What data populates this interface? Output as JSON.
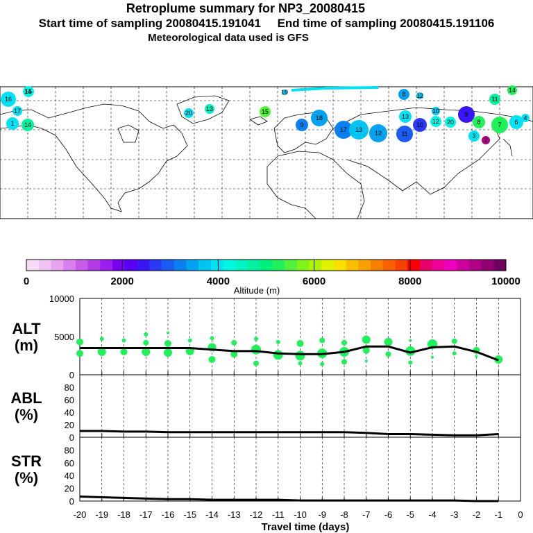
{
  "header": {
    "title": "Retroplume summary for NP3_20080415",
    "sampling": "Start time of sampling 20080415.191041     End time of sampling 20080415.191106",
    "met": "Meteorological data used is GFS"
  },
  "colorbar": {
    "colors": [
      "#f6dcf6",
      "#f0c4f2",
      "#e6a4f0",
      "#d880ee",
      "#c85ae8",
      "#b43ae6",
      "#9a1ef0",
      "#7a00f4",
      "#5a00f6",
      "#3a16f6",
      "#2a3af4",
      "#1a5cf2",
      "#0a80f0",
      "#00a2f0",
      "#00c4f2",
      "#00e2f4",
      "#00f6e2",
      "#00f4c0",
      "#00f29e",
      "#00f07c",
      "#20f05a",
      "#50f23a",
      "#80f41a",
      "#b0f400",
      "#e0f200",
      "#f8e000",
      "#f8c000",
      "#f8a000",
      "#f88000",
      "#f86000",
      "#f84000",
      "#f80000",
      "#e8006a",
      "#f00096",
      "#f000be",
      "#d0009c",
      "#b00088",
      "#900070",
      "#700060"
    ],
    "tick_labels": [
      "0",
      "2000",
      "4000",
      "6000",
      "8000",
      "10000"
    ],
    "label": "Altitude (m)"
  },
  "map_labels": [
    {
      "t": "16",
      "c": "#00e2f4"
    },
    {
      "t": "15",
      "c": "#00f6e2"
    },
    {
      "t": "17",
      "c": "#00e2f4"
    },
    {
      "t": "14",
      "c": "#00f29e"
    },
    {
      "t": "14",
      "c": "#00f29e"
    },
    {
      "t": "13",
      "c": "#00f0c0"
    },
    {
      "t": "15",
      "c": "#50f23a"
    },
    {
      "t": "20",
      "c": "#00e2f4"
    },
    {
      "t": "19",
      "c": "#00c4f2"
    },
    {
      "t": "18",
      "c": "#00a2f0"
    },
    {
      "t": "17",
      "c": "#0a80f0"
    },
    {
      "t": "13",
      "c": "#00c4f2"
    },
    {
      "t": "12",
      "c": "#00a2f0"
    },
    {
      "t": "11",
      "c": "#1a5cf2"
    },
    {
      "t": "10",
      "c": "#2a3af4"
    },
    {
      "t": "9",
      "c": "#3a16f6"
    },
    {
      "t": "8",
      "c": "#00a2f0"
    },
    {
      "t": "12",
      "c": "#00c4f2"
    },
    {
      "t": "10",
      "c": "#00c4f2"
    },
    {
      "t": "14",
      "c": "#20f05a"
    },
    {
      "t": "11",
      "c": "#00f29e"
    },
    {
      "t": "13",
      "c": "#00e2f4"
    },
    {
      "t": "12",
      "c": "#00f6e2"
    },
    {
      "t": "20",
      "c": "#00f6e2"
    },
    {
      "t": "8",
      "c": "#20f05a"
    },
    {
      "t": "7",
      "c": "#20f05a"
    },
    {
      "t": "6",
      "c": "#00e2f4"
    },
    {
      "t": "3",
      "c": "#00e2f4"
    },
    {
      "t": "2",
      "c": "#b00088"
    },
    {
      "t": "4",
      "c": "#00e2f4"
    },
    {
      "t": "1",
      "c": "#00e2f4"
    },
    {
      "t": "9",
      "c": "#0a80f0"
    }
  ],
  "chart_data": [
    {
      "type": "scatter",
      "name": "ALT",
      "ylabel_line1": "ALT",
      "ylabel_line2": "(m)",
      "ylim": [
        0,
        10000
      ],
      "yticks": [
        "10000",
        "5000",
        "0"
      ],
      "x": [
        -20,
        -19,
        -18,
        -17,
        -16,
        -15,
        -14,
        -13,
        -12,
        -11,
        -10,
        -9,
        -8,
        -7,
        -6,
        -5,
        -4,
        -3,
        -2,
        -1
      ],
      "line_values": [
        3500,
        3500,
        3500,
        3500,
        3500,
        3500,
        3300,
        3100,
        3100,
        2800,
        2700,
        2700,
        3000,
        3700,
        3700,
        2900,
        3600,
        3700,
        3000,
        1900
      ],
      "scatter_points": [
        [
          -20,
          4300,
          5
        ],
        [
          -20,
          2800,
          5
        ],
        [
          -19,
          4700,
          3
        ],
        [
          -19,
          3000,
          6
        ],
        [
          -18,
          4500,
          3
        ],
        [
          -18,
          3000,
          5
        ],
        [
          -17,
          5300,
          3
        ],
        [
          -17,
          4200,
          4
        ],
        [
          -17,
          3000,
          6
        ],
        [
          -16,
          5500,
          2
        ],
        [
          -16,
          4100,
          5
        ],
        [
          -16,
          2900,
          6
        ],
        [
          -15,
          4500,
          3
        ],
        [
          -15,
          3100,
          6
        ],
        [
          -14,
          4800,
          3
        ],
        [
          -14,
          3600,
          6
        ],
        [
          -14,
          2000,
          5
        ],
        [
          -13,
          4200,
          4
        ],
        [
          -13,
          2700,
          5
        ],
        [
          -12,
          4700,
          3
        ],
        [
          -12,
          3300,
          7
        ],
        [
          -12,
          1500,
          4
        ],
        [
          -11,
          4300,
          3
        ],
        [
          -11,
          2600,
          7
        ],
        [
          -10,
          4100,
          5
        ],
        [
          -10,
          2500,
          7
        ],
        [
          -10,
          1500,
          3
        ],
        [
          -9,
          4500,
          4
        ],
        [
          -9,
          2800,
          7
        ],
        [
          -9,
          1400,
          3
        ],
        [
          -8,
          4200,
          4
        ],
        [
          -8,
          3000,
          7
        ],
        [
          -8,
          1700,
          4
        ],
        [
          -7,
          4600,
          6
        ],
        [
          -7,
          3200,
          5
        ],
        [
          -7,
          1800,
          2
        ],
        [
          -6,
          4300,
          6
        ],
        [
          -6,
          2700,
          4
        ],
        [
          -5,
          4500,
          2
        ],
        [
          -5,
          3100,
          7
        ],
        [
          -5,
          1600,
          3
        ],
        [
          -4,
          4000,
          7
        ],
        [
          -4,
          2300,
          2
        ],
        [
          -3,
          4400,
          4
        ],
        [
          -3,
          2800,
          3
        ],
        [
          -2,
          3200,
          5
        ],
        [
          -2,
          2400,
          2
        ],
        [
          -1,
          2000,
          6
        ]
      ]
    },
    {
      "type": "line",
      "name": "ABL",
      "ylabel_line1": "ABL",
      "ylabel_line2": "(%)",
      "ylim": [
        0,
        100
      ],
      "yticks": [
        "80",
        "60",
        "40",
        "20",
        "0"
      ],
      "x": [
        -20,
        -19,
        -18,
        -17,
        -16,
        -15,
        -14,
        -13,
        -12,
        -11,
        -10,
        -9,
        -8,
        -7,
        -6,
        -5,
        -4,
        -3,
        -2,
        -1
      ],
      "values": [
        10,
        10,
        9,
        9,
        8,
        8,
        8,
        8,
        8,
        8,
        8,
        8,
        8,
        7,
        5,
        5,
        4,
        3,
        3,
        5
      ]
    },
    {
      "type": "line",
      "name": "STR",
      "ylabel_line1": "STR",
      "ylabel_line2": "(%)",
      "ylim": [
        0,
        100
      ],
      "yticks": [
        "80",
        "60",
        "40",
        "20",
        "0"
      ],
      "x": [
        -20,
        -19,
        -18,
        -17,
        -16,
        -15,
        -14,
        -13,
        -12,
        -11,
        -10,
        -9,
        -8,
        -7,
        -6,
        -5,
        -4,
        -3,
        -2,
        -1
      ],
      "values": [
        7,
        6,
        5,
        4,
        3,
        3,
        2,
        2,
        2,
        2,
        1,
        1,
        1,
        1,
        1,
        1,
        1,
        1,
        0,
        0
      ]
    }
  ],
  "xaxis": {
    "tick_labels": [
      "-20",
      "-19",
      "-18",
      "-17",
      "-16",
      "-15",
      "-14",
      "-13",
      "-12",
      "-11",
      "-10",
      "-9",
      "-8",
      "-7",
      "-6",
      "-5",
      "-4",
      "-3",
      "-2",
      "-1",
      "0"
    ],
    "label": "Travel time (days)",
    "xlim": [
      -20,
      0
    ]
  }
}
